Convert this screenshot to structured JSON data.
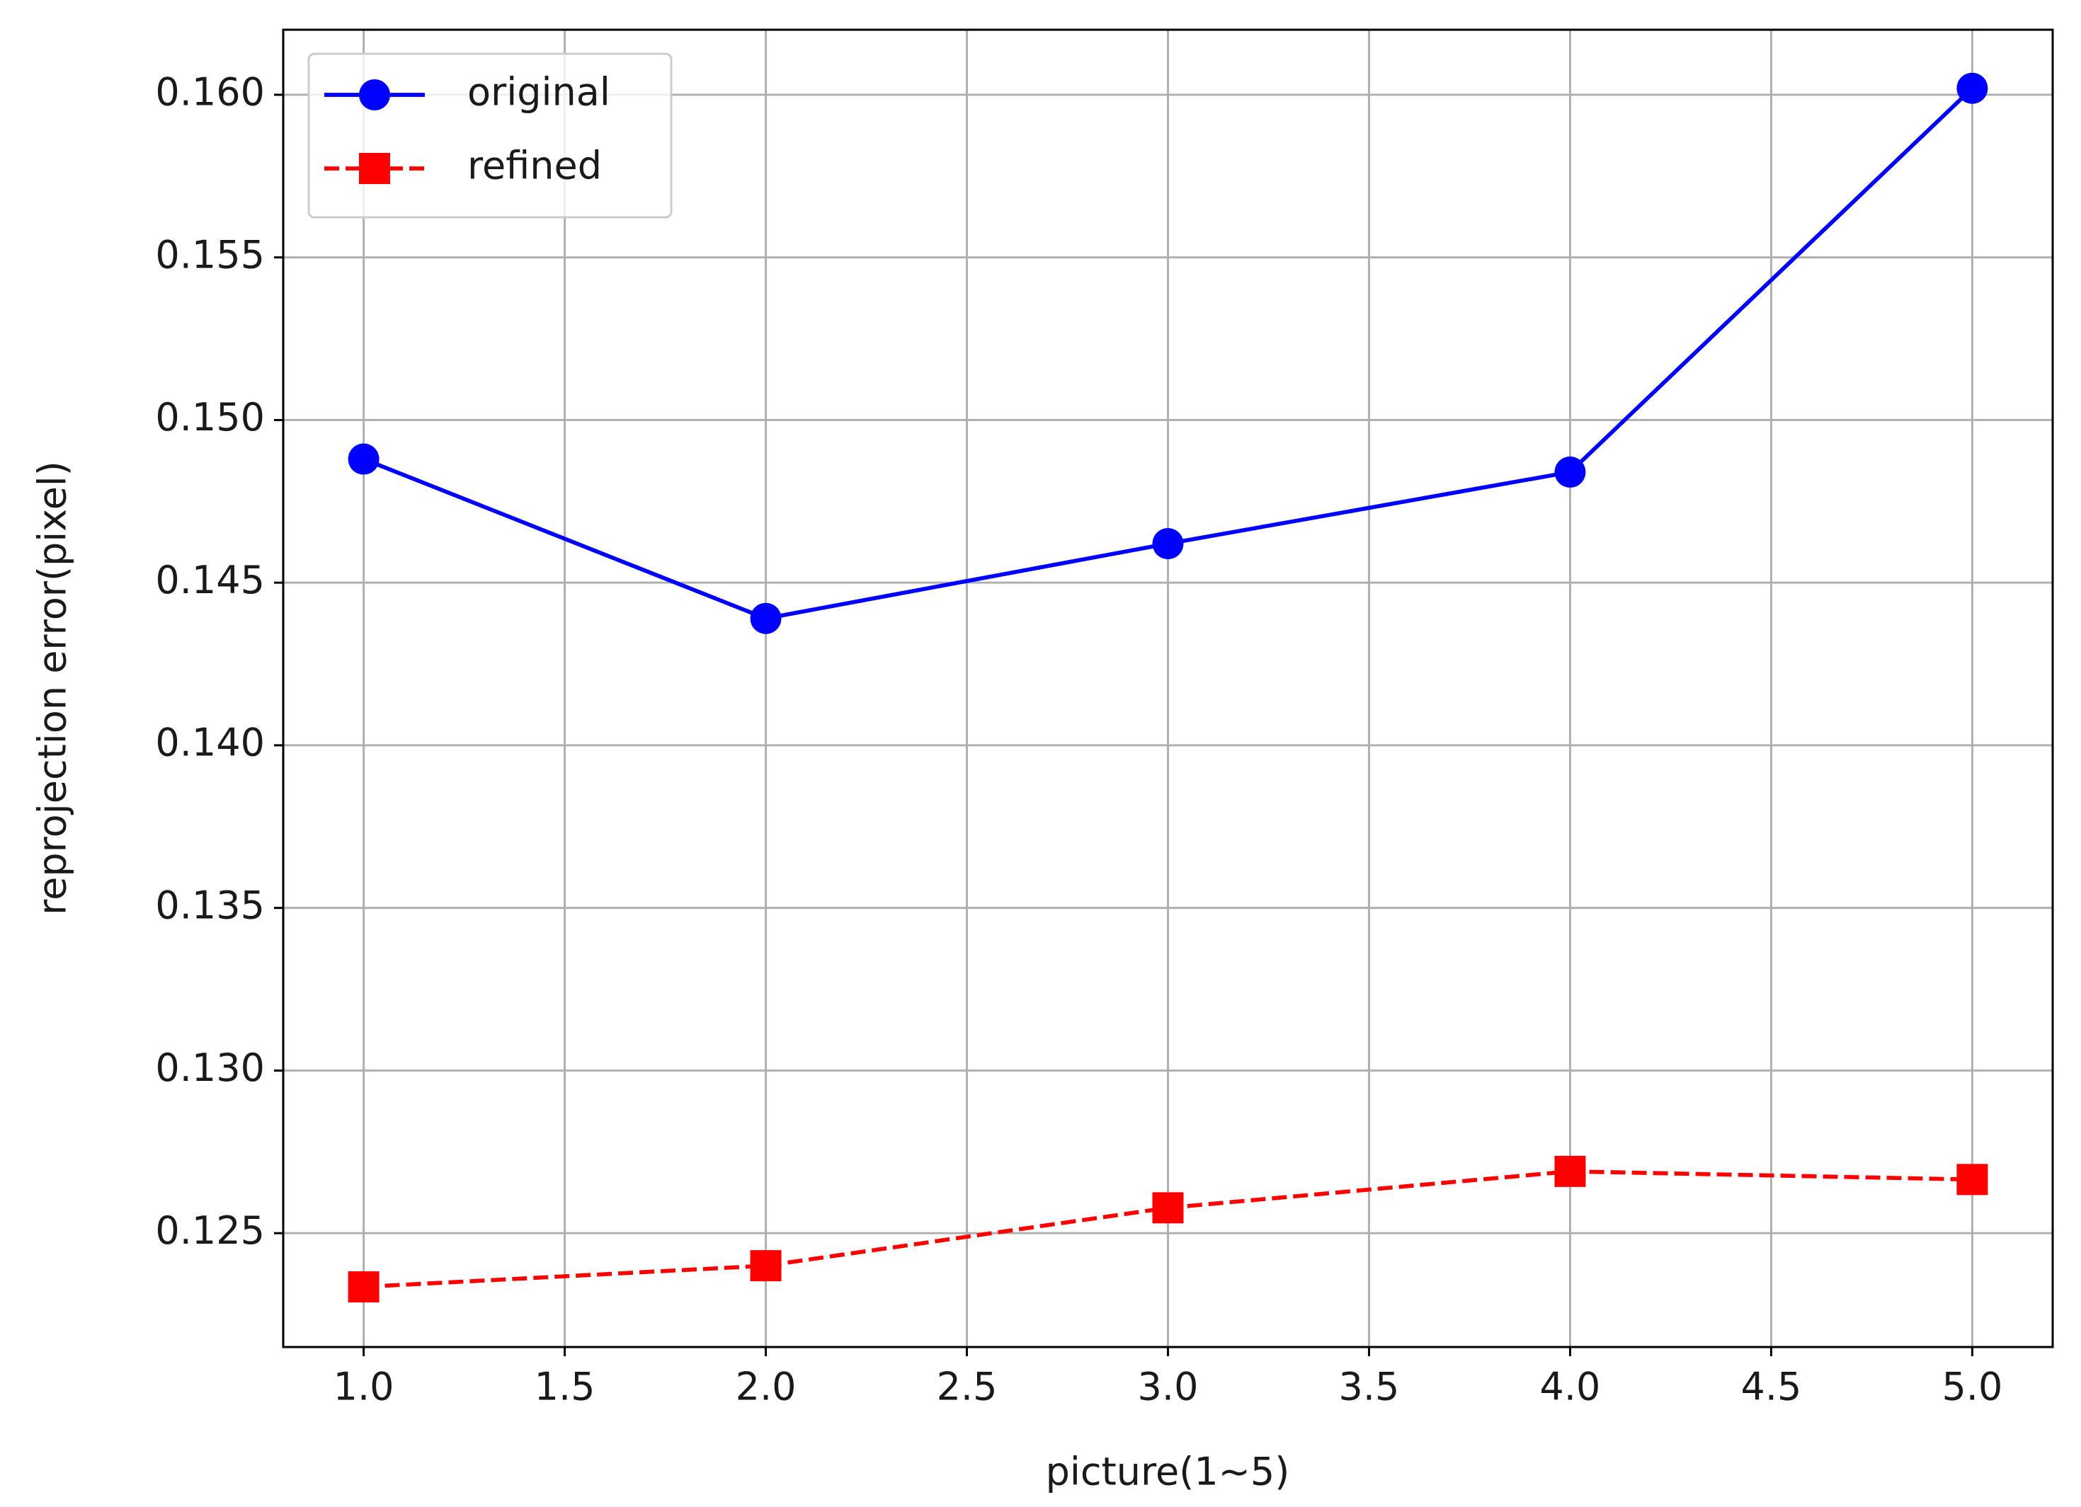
{
  "chart_data": {
    "type": "line",
    "x_label": "picture(1~5)",
    "y_label": "reprojection error(pixel)",
    "x": [
      1,
      2,
      3,
      4,
      5
    ],
    "series": [
      {
        "name": "original",
        "color": "#0000ff",
        "linestyle": "solid",
        "marker": "circle",
        "values": [
          0.1488,
          0.1439,
          0.1462,
          0.1484,
          0.1602
        ]
      },
      {
        "name": "refined",
        "color": "#ff0000",
        "linestyle": "dashed",
        "marker": "square",
        "values": [
          0.12335,
          0.124,
          0.12578,
          0.1269,
          0.12665
        ]
      }
    ],
    "xlim": [
      0.8,
      5.2
    ],
    "xticks": [
      {
        "value": 1,
        "label": "1.0"
      },
      1.5,
      {
        "value": 2,
        "label": "2.0"
      },
      2.5,
      {
        "value": 3,
        "label": "3.0"
      },
      3.5,
      {
        "value": 4,
        "label": "4.0"
      },
      4.5,
      {
        "value": 5,
        "label": "5.0"
      }
    ],
    "ylim": [
      0.1215,
      0.162
    ],
    "yticks": [
      0.125,
      {
        "value": 0.13,
        "label": "0.130"
      },
      0.135,
      {
        "value": 0.14,
        "label": "0.140"
      },
      0.145,
      {
        "value": 0.15,
        "label": "0.150"
      },
      0.155,
      {
        "value": 0.16,
        "label": "0.160"
      }
    ],
    "grid": true,
    "legend": "upper left"
  }
}
